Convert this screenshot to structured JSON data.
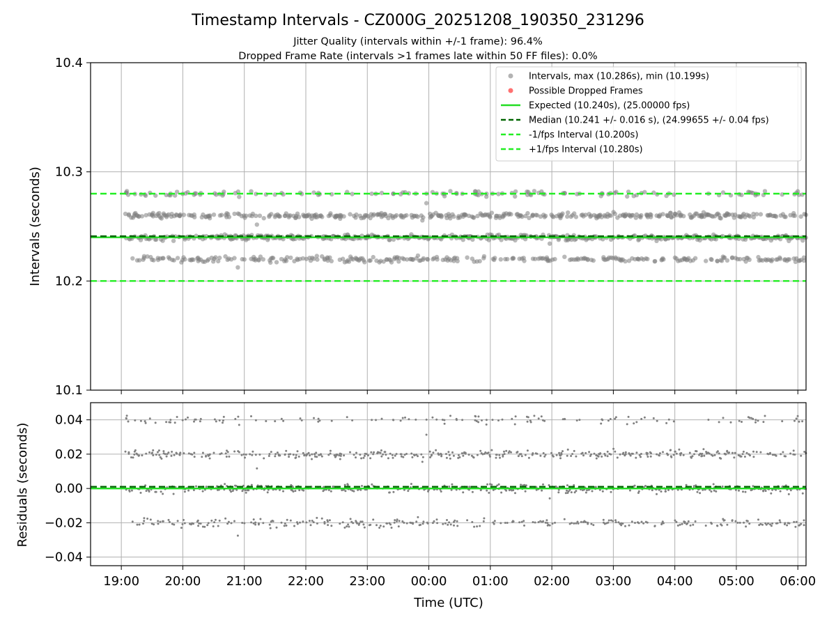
{
  "figure": {
    "title": "Timestamp Intervals - CZ000G_20251208_190350_231296",
    "subtitle_line1": "Jitter Quality (intervals within +/-1 frame): 96.4%",
    "subtitle_line2": "Dropped Frame Rate (intervals >1 frames late within 50 FF files): 0.0%",
    "xlabel": "Time (UTC)"
  },
  "colors": {
    "points": "#808080",
    "dropped": "#ff4d4d",
    "expected": "#22dd22",
    "median": "#006400",
    "fps_bounds": "#22ee22",
    "grid": "#b0b0b0"
  },
  "chart_data": [
    {
      "name": "intervals",
      "type": "scatter",
      "ylabel": "Intervals (seconds)",
      "xlabel": "",
      "xlim": [
        "2025-12-08T18:30:00",
        "2025-12-09T06:08:00"
      ],
      "ylim": [
        10.1,
        10.4
      ],
      "yticks": [
        "10.1",
        "10.2",
        "10.3",
        "10.4"
      ],
      "xticks": [
        "19:00",
        "20:00",
        "21:00",
        "22:00",
        "23:00",
        "00:00",
        "01:00",
        "02:00",
        "03:00",
        "04:00",
        "05:00",
        "06:00"
      ],
      "xtick_times": [
        "2025-12-08T19:00:00",
        "2025-12-08T20:00:00",
        "2025-12-08T21:00:00",
        "2025-12-08T22:00:00",
        "2025-12-08T23:00:00",
        "2025-12-09T00:00:00",
        "2025-12-09T01:00:00",
        "2025-12-09T02:00:00",
        "2025-12-09T03:00:00",
        "2025-12-09T04:00:00",
        "2025-12-09T05:00:00",
        "2025-12-09T06:00:00"
      ],
      "grid": true,
      "legend_position": "top-right",
      "data_start": "2025-12-08T19:03:50",
      "data_end": "2025-12-09T06:08:00",
      "levels": [
        {
          "y": 10.28,
          "weight": 0.1
        },
        {
          "y": 10.26,
          "weight": 0.32
        },
        {
          "y": 10.24,
          "weight": 0.36
        },
        {
          "y": 10.22,
          "weight": 0.22
        }
      ],
      "max": 10.286,
      "min": 10.199,
      "reference_lines": [
        {
          "name": "Expected",
          "y": 10.24,
          "style": "solid"
        },
        {
          "name": "Median",
          "y": 10.241,
          "style": "dashed"
        },
        {
          "name": "-1/fps Interval",
          "y": 10.2,
          "style": "dashed"
        },
        {
          "name": "+1/fps Interval",
          "y": 10.28,
          "style": "dashed"
        }
      ],
      "legend": [
        {
          "label": "Intervals, max (10.286s), min (10.199s)",
          "kind": "marker",
          "color_key": "points"
        },
        {
          "label": "Possible Dropped Frames",
          "kind": "marker",
          "color_key": "dropped"
        },
        {
          "label": "Expected (10.240s), (25.00000 fps)",
          "kind": "solid",
          "color_key": "expected"
        },
        {
          "label": "Median (10.241 +/- 0.016 s), (24.99655 +/- 0.04 fps)",
          "kind": "dashed",
          "color_key": "median"
        },
        {
          "label": "-1/fps Interval (10.200s)",
          "kind": "dashed",
          "color_key": "fps_bounds"
        },
        {
          "label": "+1/fps Interval (10.280s)",
          "kind": "dashed",
          "color_key": "fps_bounds"
        }
      ]
    },
    {
      "name": "residuals",
      "type": "scatter",
      "ylabel": "Residuals (seconds)",
      "xlabel": "Time (UTC)",
      "xlim": [
        "2025-12-08T18:30:00",
        "2025-12-09T06:08:00"
      ],
      "ylim": [
        -0.045,
        0.05
      ],
      "yticks": [
        "−0.04",
        "−0.02",
        "0.00",
        "0.02",
        "0.04"
      ],
      "ytick_values": [
        -0.04,
        -0.02,
        0.0,
        0.02,
        0.04
      ],
      "xticks": [
        "19:00",
        "20:00",
        "21:00",
        "22:00",
        "23:00",
        "00:00",
        "01:00",
        "02:00",
        "03:00",
        "04:00",
        "05:00",
        "06:00"
      ],
      "xtick_times": [
        "2025-12-08T19:00:00",
        "2025-12-08T20:00:00",
        "2025-12-08T21:00:00",
        "2025-12-08T22:00:00",
        "2025-12-08T23:00:00",
        "2025-12-09T00:00:00",
        "2025-12-09T01:00:00",
        "2025-12-09T02:00:00",
        "2025-12-09T03:00:00",
        "2025-12-09T04:00:00",
        "2025-12-09T05:00:00",
        "2025-12-09T06:00:00"
      ],
      "grid": true,
      "levels": [
        {
          "y": 0.04,
          "weight": 0.1
        },
        {
          "y": 0.02,
          "weight": 0.32
        },
        {
          "y": 0.0,
          "weight": 0.36
        },
        {
          "y": -0.02,
          "weight": 0.22
        }
      ],
      "max": 0.046,
      "min": -0.041,
      "reference_lines": [
        {
          "name": "Expected",
          "y": 0.0,
          "style": "solid"
        },
        {
          "name": "Median",
          "y": 0.001,
          "style": "dashed"
        }
      ]
    }
  ]
}
